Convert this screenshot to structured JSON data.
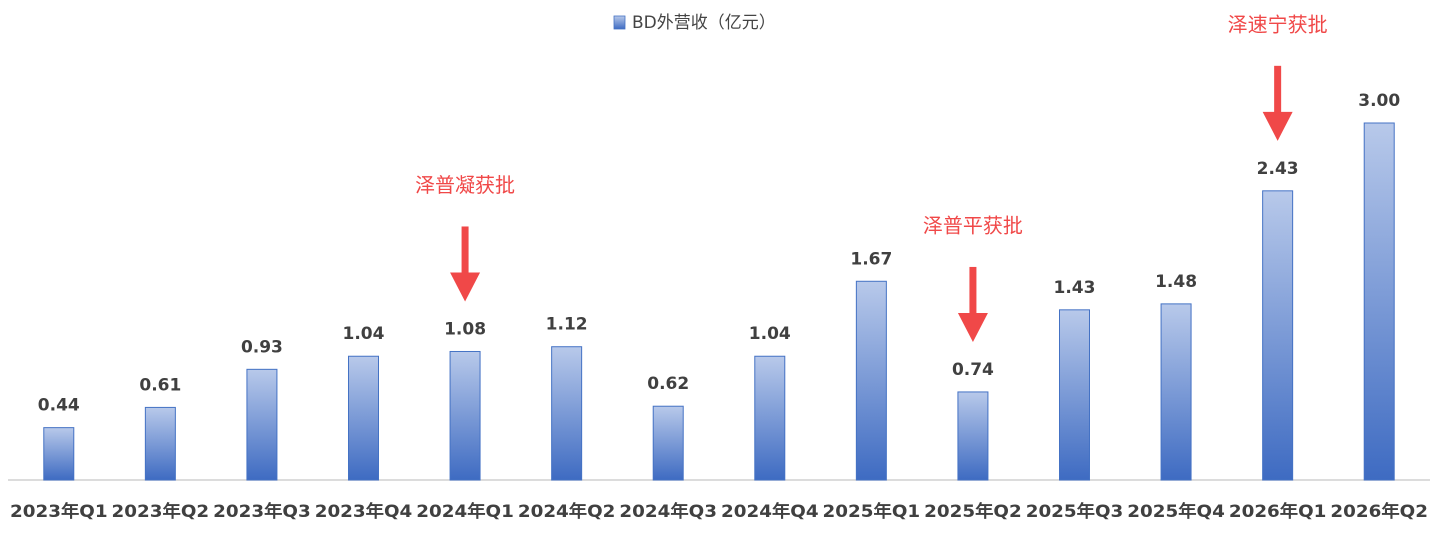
{
  "chart_data": {
    "type": "bar",
    "categories": [
      "2023年Q1",
      "2023年Q2",
      "2023年Q3",
      "2023年Q4",
      "2024年Q1",
      "2024年Q2",
      "2024年Q3",
      "2024年Q4",
      "2025年Q1",
      "2025年Q2",
      "2025年Q3",
      "2025年Q4",
      "2026年Q1",
      "2026年Q2"
    ],
    "series": [
      {
        "name": "BD外营收（亿元）",
        "color": "#4472c4",
        "values": [
          0.44,
          0.61,
          0.93,
          1.04,
          1.08,
          1.12,
          0.62,
          1.04,
          1.67,
          0.74,
          1.43,
          1.48,
          2.43,
          3.0
        ],
        "value_labels": [
          "0.44",
          "0.61",
          "0.93",
          "1.04",
          "1.08",
          "1.12",
          "0.62",
          "1.04",
          "1.67",
          "0.74",
          "1.43",
          "1.48",
          "2.43",
          "3.00"
        ]
      }
    ],
    "ylim": [
      0,
      3
    ],
    "legend": "top",
    "annotations": [
      {
        "text": "泽普凝获批",
        "category": "2024年Q1",
        "color": "#f04848"
      },
      {
        "text": "泽普平获批",
        "category": "2025年Q2",
        "color": "#f04848"
      },
      {
        "text": "泽速宁获批",
        "category": "2026年Q1",
        "color": "#f04848"
      }
    ]
  }
}
